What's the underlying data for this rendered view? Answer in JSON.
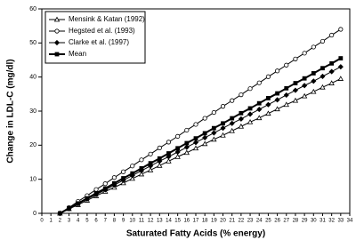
{
  "chart_data": {
    "type": "line",
    "x_label": "Saturated Fatty Acids (% energy)",
    "y_label": "Change in LDL-C (mg/dl)",
    "x": [
      2,
      3,
      4,
      5,
      6,
      7,
      8,
      9,
      10,
      11,
      12,
      13,
      14,
      15,
      16,
      17,
      18,
      19,
      20,
      21,
      22,
      23,
      24,
      25,
      26,
      27,
      28,
      29,
      30,
      31,
      32,
      33
    ],
    "series": [
      {
        "name": "Mensink & Katan (1992)",
        "color": "#000000",
        "marker": "triangle-open",
        "values": [
          0,
          1.3,
          2.5,
          3.8,
          5.1,
          6.4,
          7.6,
          8.9,
          10.2,
          11.5,
          12.7,
          14.0,
          15.3,
          16.6,
          17.8,
          19.1,
          20.4,
          21.7,
          22.9,
          24.2,
          25.5,
          26.8,
          28.0,
          29.3,
          30.6,
          31.9,
          33.1,
          34.4,
          35.7,
          37.0,
          38.2,
          39.5
        ]
      },
      {
        "name": "Hegsted et al. (1993)",
        "color": "#000000",
        "marker": "circle-open",
        "values": [
          0,
          1.7,
          3.5,
          5.2,
          7.0,
          8.7,
          10.5,
          12.2,
          13.9,
          15.7,
          17.4,
          19.2,
          20.9,
          22.6,
          24.4,
          26.1,
          27.9,
          29.6,
          31.4,
          33.1,
          34.8,
          36.6,
          38.3,
          40.1,
          41.8,
          43.5,
          45.3,
          47.0,
          48.8,
          50.5,
          52.3,
          54.0
        ]
      },
      {
        "name": "Clarke et al. (1997)",
        "color": "#000000",
        "marker": "diamond",
        "values": [
          0,
          1.4,
          2.8,
          4.2,
          5.5,
          6.9,
          8.3,
          9.7,
          11.1,
          12.5,
          13.9,
          15.3,
          16.6,
          18.0,
          19.4,
          20.8,
          22.2,
          23.6,
          25.0,
          26.4,
          27.7,
          29.1,
          30.5,
          31.9,
          33.3,
          34.7,
          36.1,
          37.5,
          38.8,
          40.2,
          41.6,
          43.0
        ]
      },
      {
        "name": "Mean",
        "color": "#000000",
        "marker": "square",
        "values": [
          0,
          1.5,
          2.9,
          4.4,
          5.9,
          7.3,
          8.8,
          10.3,
          11.7,
          13.2,
          14.7,
          16.1,
          17.6,
          19.1,
          20.6,
          22.0,
          23.5,
          25.0,
          26.4,
          27.9,
          29.4,
          30.8,
          32.3,
          33.8,
          35.2,
          36.7,
          38.2,
          39.6,
          41.1,
          42.6,
          44.0,
          45.5
        ]
      }
    ],
    "xlim": [
      0,
      34
    ],
    "xticks": [
      0,
      1,
      2,
      3,
      4,
      5,
      6,
      7,
      8,
      9,
      10,
      11,
      12,
      13,
      14,
      15,
      16,
      17,
      18,
      19,
      20,
      21,
      22,
      23,
      24,
      25,
      26,
      27,
      28,
      29,
      30,
      31,
      32,
      33,
      34
    ],
    "ylim": [
      0,
      60
    ],
    "yticks": [
      0,
      10,
      20,
      30,
      40,
      50,
      60
    ],
    "legend": "top-left"
  }
}
